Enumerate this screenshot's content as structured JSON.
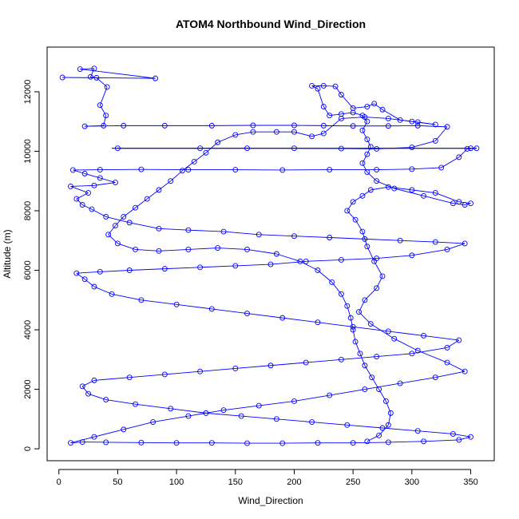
{
  "chart_data": {
    "type": "scatter",
    "title": "ATOM4 Northbound Wind_Direction",
    "xlabel": "Wind_Direction",
    "ylabel": "Altitude (m)",
    "xlim": [
      -10,
      370
    ],
    "ylim": [
      -400,
      13500
    ],
    "xticks": [
      0,
      50,
      100,
      150,
      200,
      250,
      300,
      350
    ],
    "yticks": [
      0,
      2000,
      4000,
      6000,
      8000,
      10000,
      12000
    ],
    "grid": false,
    "legend": "none",
    "marker": "open-circle",
    "connected": true,
    "colors": {
      "series": "#0000ff",
      "reference_line": "#000000",
      "axes": "#000000"
    },
    "series": [
      {
        "points": [
          [
            3,
            12480
          ],
          [
            82,
            12450
          ],
          [
            18,
            12760
          ],
          [
            30,
            12780
          ],
          [
            27,
            12500
          ],
          [
            32,
            12470
          ],
          [
            41,
            12160
          ],
          [
            35,
            11550
          ],
          [
            40,
            11200
          ],
          [
            38,
            10860
          ],
          [
            22,
            10840
          ],
          [
            55,
            10860
          ],
          [
            90,
            10860
          ],
          [
            130,
            10860
          ],
          [
            165,
            10870
          ],
          [
            200,
            10870
          ],
          [
            225,
            10860
          ],
          [
            250,
            10850
          ],
          [
            280,
            10850
          ],
          [
            305,
            10860
          ],
          [
            330,
            10820
          ],
          [
            320,
            10350
          ],
          [
            300,
            10130
          ],
          [
            270,
            10080
          ],
          [
            240,
            10090
          ],
          [
            200,
            10100
          ],
          [
            160,
            10100
          ],
          [
            120,
            10100
          ],
          [
            50,
            10100
          ],
          [
            350,
            10100
          ],
          [
            355,
            10100
          ],
          [
            347,
            10080
          ],
          [
            340,
            9800
          ],
          [
            325,
            9450
          ],
          [
            300,
            9400
          ],
          [
            270,
            9380
          ],
          [
            230,
            9380
          ],
          [
            190,
            9370
          ],
          [
            150,
            9380
          ],
          [
            110,
            9380
          ],
          [
            70,
            9390
          ],
          [
            35,
            9380
          ],
          [
            12,
            9370
          ],
          [
            22,
            9250
          ],
          [
            35,
            9100
          ],
          [
            48,
            8950
          ],
          [
            30,
            8850
          ],
          [
            10,
            8820
          ],
          [
            25,
            8600
          ],
          [
            15,
            8400
          ],
          [
            20,
            8200
          ],
          [
            28,
            8050
          ],
          [
            40,
            7800
          ],
          [
            60,
            7600
          ],
          [
            85,
            7400
          ],
          [
            110,
            7350
          ],
          [
            140,
            7300
          ],
          [
            170,
            7200
          ],
          [
            200,
            7150
          ],
          [
            230,
            7100
          ],
          [
            260,
            7050
          ],
          [
            290,
            7000
          ],
          [
            320,
            6950
          ],
          [
            345,
            6900
          ],
          [
            330,
            6700
          ],
          [
            300,
            6500
          ],
          [
            270,
            6400
          ],
          [
            240,
            6350
          ],
          [
            210,
            6300
          ],
          [
            180,
            6200
          ],
          [
            150,
            6150
          ],
          [
            120,
            6100
          ],
          [
            90,
            6050
          ],
          [
            60,
            6000
          ],
          [
            35,
            5950
          ],
          [
            15,
            5900
          ],
          [
            22,
            5700
          ],
          [
            30,
            5450
          ],
          [
            45,
            5200
          ],
          [
            70,
            5000
          ],
          [
            100,
            4850
          ],
          [
            130,
            4700
          ],
          [
            160,
            4550
          ],
          [
            190,
            4400
          ],
          [
            220,
            4250
          ],
          [
            250,
            4100
          ],
          [
            280,
            3950
          ],
          [
            310,
            3800
          ],
          [
            340,
            3650
          ],
          [
            330,
            3400
          ],
          [
            300,
            3200
          ],
          [
            270,
            3100
          ],
          [
            240,
            3000
          ],
          [
            210,
            2900
          ],
          [
            180,
            2800
          ],
          [
            150,
            2700
          ],
          [
            120,
            2600
          ],
          [
            90,
            2500
          ],
          [
            60,
            2400
          ],
          [
            30,
            2300
          ],
          [
            20,
            2100
          ],
          [
            25,
            1850
          ],
          [
            40,
            1650
          ],
          [
            65,
            1500
          ],
          [
            95,
            1350
          ],
          [
            125,
            1200
          ],
          [
            155,
            1100
          ],
          [
            185,
            1000
          ],
          [
            215,
            900
          ],
          [
            245,
            800
          ],
          [
            275,
            700
          ],
          [
            305,
            600
          ],
          [
            335,
            500
          ],
          [
            350,
            400
          ],
          [
            340,
            300
          ],
          [
            310,
            250
          ],
          [
            280,
            220
          ],
          [
            250,
            200
          ],
          [
            220,
            200
          ],
          [
            190,
            190
          ],
          [
            160,
            190
          ],
          [
            130,
            200
          ],
          [
            100,
            200
          ],
          [
            70,
            210
          ],
          [
            40,
            220
          ],
          [
            20,
            230
          ],
          [
            10,
            200
          ],
          [
            30,
            400
          ],
          [
            55,
            650
          ],
          [
            80,
            900
          ],
          [
            110,
            1100
          ],
          [
            140,
            1300
          ],
          [
            170,
            1450
          ],
          [
            200,
            1600
          ],
          [
            230,
            1800
          ],
          [
            260,
            2000
          ],
          [
            290,
            2200
          ],
          [
            320,
            2400
          ],
          [
            345,
            2600
          ],
          [
            330,
            2900
          ],
          [
            305,
            3300
          ],
          [
            285,
            3700
          ],
          [
            265,
            4200
          ],
          [
            255,
            4600
          ],
          [
            260,
            5000
          ],
          [
            270,
            5400
          ],
          [
            275,
            5800
          ],
          [
            268,
            6300
          ],
          [
            262,
            6800
          ],
          [
            258,
            7300
          ],
          [
            252,
            7700
          ],
          [
            245,
            8000
          ],
          [
            250,
            8300
          ],
          [
            258,
            8500
          ],
          [
            265,
            8700
          ],
          [
            280,
            8800
          ],
          [
            300,
            8700
          ],
          [
            320,
            8600
          ],
          [
            340,
            8300
          ],
          [
            350,
            8250
          ],
          [
            345,
            8200
          ],
          [
            335,
            8250
          ],
          [
            310,
            8500
          ],
          [
            285,
            8750
          ],
          [
            270,
            9000
          ],
          [
            262,
            9300
          ],
          [
            258,
            9600
          ],
          [
            262,
            9900
          ],
          [
            265,
            10150
          ],
          [
            262,
            10400
          ],
          [
            258,
            10700
          ],
          [
            262,
            11000
          ],
          [
            258,
            11200
          ],
          [
            250,
            11300
          ],
          [
            240,
            11250
          ],
          [
            230,
            11200
          ],
          [
            225,
            11500
          ],
          [
            220,
            12100
          ],
          [
            215,
            12200
          ],
          [
            225,
            12200
          ],
          [
            235,
            12180
          ],
          [
            240,
            11900
          ],
          [
            250,
            11450
          ],
          [
            262,
            11500
          ],
          [
            268,
            11600
          ],
          [
            275,
            11400
          ],
          [
            290,
            11050
          ],
          [
            305,
            10980
          ],
          [
            320,
            10900
          ],
          [
            300,
            11000
          ],
          [
            280,
            11100
          ],
          [
            260,
            11150
          ],
          [
            240,
            11100
          ],
          [
            225,
            10600
          ],
          [
            215,
            10500
          ],
          [
            200,
            10650
          ],
          [
            185,
            10650
          ],
          [
            165,
            10650
          ],
          [
            150,
            10550
          ],
          [
            135,
            10300
          ],
          [
            125,
            9950
          ],
          [
            115,
            9650
          ],
          [
            105,
            9350
          ],
          [
            95,
            9000
          ],
          [
            85,
            8700
          ],
          [
            75,
            8400
          ],
          [
            65,
            8100
          ],
          [
            55,
            7800
          ],
          [
            48,
            7500
          ],
          [
            42,
            7200
          ],
          [
            50,
            6900
          ],
          [
            65,
            6700
          ],
          [
            85,
            6650
          ],
          [
            110,
            6700
          ],
          [
            135,
            6750
          ],
          [
            160,
            6700
          ],
          [
            185,
            6550
          ],
          [
            205,
            6300
          ],
          [
            220,
            6000
          ],
          [
            232,
            5600
          ],
          [
            240,
            5200
          ],
          [
            245,
            4800
          ],
          [
            248,
            4400
          ],
          [
            250,
            4000
          ],
          [
            252,
            3600
          ],
          [
            256,
            3200
          ],
          [
            260,
            2800
          ],
          [
            266,
            2400
          ],
          [
            272,
            2000
          ],
          [
            278,
            1600
          ],
          [
            282,
            1200
          ],
          [
            280,
            800
          ],
          [
            272,
            450
          ],
          [
            262,
            250
          ]
        ]
      }
    ],
    "reference_lines": [
      {
        "y": 10100,
        "x_from": 45,
        "x_to": 355
      }
    ]
  }
}
